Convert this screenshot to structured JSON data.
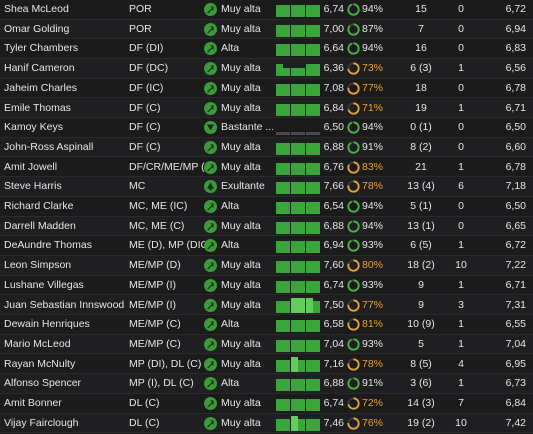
{
  "colors": {
    "morale_icon": "#3d9a3a",
    "form_bar": "#3aa53a",
    "form_bar_light": "#5fcf5a",
    "condition_good": "#4bb543",
    "condition_mid": "#e8a23a",
    "condition_mid_text": "#e8a23a",
    "ring_track": "#3a3a3a"
  },
  "players": [
    {
      "name": "Shea McLeod",
      "position": "POR",
      "morale_icon": "arrow-up-right-icon",
      "morale": "Muy alta",
      "form": [
        4,
        4,
        4,
        4,
        4,
        4
      ],
      "avg": "6,74",
      "condition": 94,
      "condition_label": "94%",
      "apps": "15",
      "goals": "0",
      "rating": "6,72"
    },
    {
      "name": "Omar Golding",
      "position": "POR",
      "morale_icon": "arrow-up-right-icon",
      "morale": "Muy alta",
      "form": [
        4,
        4,
        4,
        4,
        4,
        4
      ],
      "avg": "7,00",
      "condition": 87,
      "condition_label": "87%",
      "apps": "7",
      "goals": "0",
      "rating": "6,94"
    },
    {
      "name": "Tyler Chambers",
      "position": "DF (DI)",
      "morale_icon": "arrow-up-right-icon",
      "morale": "Alta",
      "form": [
        4,
        4,
        4,
        4,
        4,
        4
      ],
      "avg": "6,64",
      "condition": 94,
      "condition_label": "94%",
      "apps": "16",
      "goals": "0",
      "rating": "6,83"
    },
    {
      "name": "Hanif Cameron",
      "position": "DF (DC)",
      "morale_icon": "arrow-up-right-icon",
      "morale": "Muy alta",
      "form": [
        4,
        2,
        2,
        2,
        4,
        4
      ],
      "avg": "6,36",
      "condition": 73,
      "condition_label": "73%",
      "apps": "6 (3)",
      "goals": "1",
      "rating": "6,56"
    },
    {
      "name": "Jaheim Charles",
      "position": "DF (IC)",
      "morale_icon": "arrow-up-right-icon",
      "morale": "Muy alta",
      "form": [
        4,
        4,
        4,
        4,
        4,
        4
      ],
      "avg": "7,08",
      "condition": 77,
      "condition_label": "77%",
      "apps": "18",
      "goals": "0",
      "rating": "6,78"
    },
    {
      "name": "Emile Thomas",
      "position": "DF (C)",
      "morale_icon": "arrow-up-right-icon",
      "morale": "Muy alta",
      "form": [
        4,
        4,
        4,
        4,
        4,
        4
      ],
      "avg": "6,84",
      "condition": 71,
      "condition_label": "71%",
      "apps": "19",
      "goals": "1",
      "rating": "6,71"
    },
    {
      "name": "Kamoy Keys",
      "position": "DF (C)",
      "morale_icon": "arrow-down-icon",
      "morale": "Bastante ...",
      "form": [
        0,
        0,
        0,
        0,
        0,
        0
      ],
      "avg": "6,50",
      "condition": 94,
      "condition_label": "94%",
      "apps": "0 (1)",
      "goals": "0",
      "rating": "6,50"
    },
    {
      "name": "John-Ross Aspinall",
      "position": "DF (C)",
      "morale_icon": "arrow-up-right-icon",
      "morale": "Muy alta",
      "form": [
        4,
        4,
        4,
        4,
        4,
        4
      ],
      "avg": "6,88",
      "condition": 91,
      "condition_label": "91%",
      "apps": "8 (2)",
      "goals": "0",
      "rating": "6,60"
    },
    {
      "name": "Amit Jowell",
      "position": "DF/CR/ME/MP (D)",
      "morale_icon": "arrow-up-right-icon",
      "morale": "Muy alta",
      "form": [
        4,
        4,
        4,
        4,
        4,
        4
      ],
      "avg": "6,76",
      "condition": 83,
      "condition_label": "83%",
      "apps": "21",
      "goals": "1",
      "rating": "6,78"
    },
    {
      "name": "Steve Harris",
      "position": "MC",
      "morale_icon": "arrow-up-icon",
      "morale": "Exultante",
      "form": [
        4,
        4,
        4,
        4,
        4,
        4
      ],
      "avg": "7,66",
      "condition": 78,
      "condition_label": "78%",
      "apps": "13 (4)",
      "goals": "6",
      "rating": "7,18"
    },
    {
      "name": "Richard Clarke",
      "position": "MC, ME (IC)",
      "morale_icon": "arrow-up-right-icon",
      "morale": "Alta",
      "form": [
        4,
        4,
        4,
        4,
        4,
        4
      ],
      "avg": "6,54",
      "condition": 94,
      "condition_label": "94%",
      "apps": "5 (1)",
      "goals": "0",
      "rating": "6,50"
    },
    {
      "name": "Darrell Madden",
      "position": "MC, ME (C)",
      "morale_icon": "arrow-up-right-icon",
      "morale": "Muy alta",
      "form": [
        4,
        4,
        4,
        4,
        4,
        4
      ],
      "avg": "6,88",
      "condition": 94,
      "condition_label": "94%",
      "apps": "13 (1)",
      "goals": "0",
      "rating": "6,65"
    },
    {
      "name": "DeAundre Thomas",
      "position": "ME (D), MP (DIC)",
      "morale_icon": "arrow-up-right-icon",
      "morale": "Alta",
      "form": [
        4,
        4,
        4,
        4,
        4,
        4
      ],
      "avg": "6,94",
      "condition": 93,
      "condition_label": "93%",
      "apps": "6 (5)",
      "goals": "1",
      "rating": "6,72"
    },
    {
      "name": "Leon Simpson",
      "position": "ME/MP (D)",
      "morale_icon": "arrow-up-right-icon",
      "morale": "Muy alta",
      "form": [
        4,
        4,
        4,
        4,
        4,
        4
      ],
      "avg": "7,60",
      "condition": 80,
      "condition_label": "80%",
      "apps": "18 (2)",
      "goals": "10",
      "rating": "7,22"
    },
    {
      "name": "Lushane Villegas",
      "position": "ME/MP (I)",
      "morale_icon": "arrow-up-right-icon",
      "morale": "Muy alta",
      "form": [
        4,
        4,
        4,
        4,
        4,
        4
      ],
      "avg": "6,74",
      "condition": 93,
      "condition_label": "93%",
      "apps": "9",
      "goals": "1",
      "rating": "6,71"
    },
    {
      "name": "Juan Sebastian Innswood",
      "position": "ME/MP (I)",
      "morale_icon": "arrow-up-right-icon",
      "morale": "Muy alta",
      "form": [
        4,
        4,
        5,
        5,
        5,
        4
      ],
      "avg": "7,50",
      "condition": 77,
      "condition_label": "77%",
      "apps": "9",
      "goals": "3",
      "rating": "7,31"
    },
    {
      "name": "Dewain Henriques",
      "position": "ME/MP (C)",
      "morale_icon": "arrow-up-right-icon",
      "morale": "Alta",
      "form": [
        4,
        4,
        4,
        4,
        4,
        4
      ],
      "avg": "6,58",
      "condition": 81,
      "condition_label": "81%",
      "apps": "10 (9)",
      "goals": "1",
      "rating": "6,55"
    },
    {
      "name": "Mario McLeod",
      "position": "ME/MP (C)",
      "morale_icon": "arrow-up-right-icon",
      "morale": "Muy alta",
      "form": [
        4,
        4,
        4,
        4,
        4,
        4
      ],
      "avg": "7,04",
      "condition": 93,
      "condition_label": "93%",
      "apps": "5",
      "goals": "1",
      "rating": "7,04"
    },
    {
      "name": "Rayan McNulty",
      "position": "MP (DI), DL (C)",
      "morale_icon": "arrow-up-right-icon",
      "morale": "Muy alta",
      "form": [
        4,
        4,
        5,
        4,
        4,
        4
      ],
      "avg": "7,16",
      "condition": 78,
      "condition_label": "78%",
      "apps": "8 (5)",
      "goals": "4",
      "rating": "6,95"
    },
    {
      "name": "Alfonso Spencer",
      "position": "MP (I), DL (C)",
      "morale_icon": "arrow-up-right-icon",
      "morale": "Alta",
      "form": [
        4,
        4,
        4,
        4,
        4,
        4
      ],
      "avg": "6,88",
      "condition": 91,
      "condition_label": "91%",
      "apps": "3 (6)",
      "goals": "1",
      "rating": "6,73"
    },
    {
      "name": "Amit Bonner",
      "position": "DL (C)",
      "morale_icon": "arrow-up-right-icon",
      "morale": "Muy alta",
      "form": [
        4,
        4,
        4,
        4,
        4,
        4
      ],
      "avg": "6,74",
      "condition": 72,
      "condition_label": "72%",
      "apps": "14 (3)",
      "goals": "7",
      "rating": "6,84"
    },
    {
      "name": "Vijay Fairclough",
      "position": "DL (C)",
      "morale_icon": "arrow-up-right-icon",
      "morale": "Muy alta",
      "form": [
        4,
        4,
        5,
        4,
        4,
        4
      ],
      "avg": "7,46",
      "condition": 76,
      "condition_label": "76%",
      "apps": "19 (2)",
      "goals": "10",
      "rating": "7,42"
    }
  ]
}
